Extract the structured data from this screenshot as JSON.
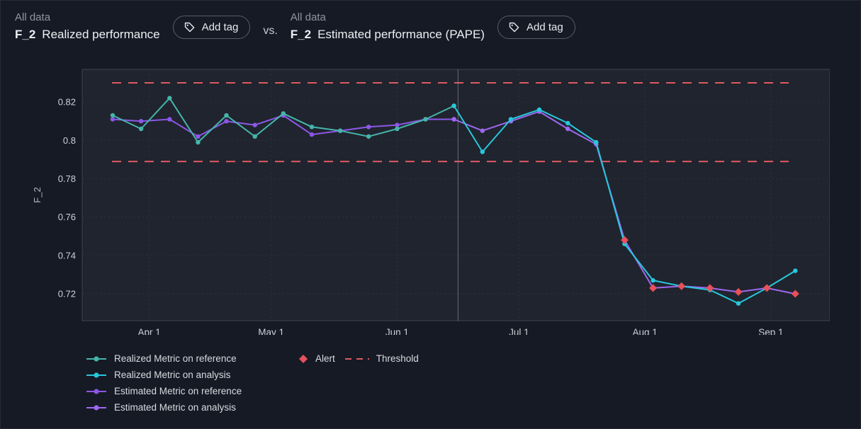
{
  "header": {
    "left": {
      "scope": "All data",
      "metric": "F_2",
      "title": "Realized performance",
      "add_tag": "Add tag"
    },
    "vs": "vs.",
    "right": {
      "scope": "All data",
      "metric": "F_2",
      "title": "Estimated performance (PAPE)",
      "add_tag": "Add tag"
    }
  },
  "chart_data": {
    "type": "line",
    "title": "",
    "xlabel": "",
    "ylabel": "F_2",
    "x_unit": "days since Mar 1",
    "x_domain": [
      14.5,
      198.5
    ],
    "y_domain": [
      0.706,
      0.837
    ],
    "x_ticks": [
      {
        "day": 31,
        "label": "Apr 1"
      },
      {
        "day": 61,
        "label": "May 1"
      },
      {
        "day": 92,
        "label": "Jun 1"
      },
      {
        "day": 122,
        "label": "Jul 1"
      },
      {
        "day": 153,
        "label": "Aug 1"
      },
      {
        "day": 184,
        "label": "Sep 1"
      }
    ],
    "y_ticks": [
      {
        "value": 0.72,
        "label": "0.72"
      },
      {
        "value": 0.74,
        "label": "0.74"
      },
      {
        "value": 0.76,
        "label": "0.76"
      },
      {
        "value": 0.78,
        "label": "0.78"
      },
      {
        "value": 0.8,
        "label": "0.8"
      },
      {
        "value": 0.82,
        "label": "0.82"
      }
    ],
    "thresholds": [
      0.83,
      0.789
    ],
    "threshold_label": "Threshold",
    "threshold_color": "#dd5a60",
    "divider_day": 107,
    "series": [
      {
        "name": "Realized Metric on reference",
        "color": "#45b5aa",
        "x": [
          22,
          29,
          36,
          43,
          50,
          57,
          64,
          71,
          78,
          85,
          92,
          99,
          106
        ],
        "values": [
          0.813,
          0.806,
          0.822,
          0.799,
          0.813,
          0.802,
          0.814,
          0.807,
          0.805,
          0.802,
          0.806,
          0.811,
          0.818
        ]
      },
      {
        "name": "Realized Metric on analysis",
        "color": "#27c8dc",
        "x": [
          106,
          113,
          120,
          127,
          134,
          141,
          148,
          155,
          162,
          169,
          176,
          183,
          190
        ],
        "values": [
          0.818,
          0.794,
          0.811,
          0.816,
          0.809,
          0.799,
          0.746,
          0.727,
          0.724,
          0.722,
          0.715,
          0.723,
          0.732
        ]
      },
      {
        "name": "Estimated Metric on reference",
        "color": "#8c57e6",
        "x": [
          22,
          29,
          36,
          43,
          50,
          57,
          64,
          71,
          78,
          85,
          92,
          99,
          106
        ],
        "values": [
          0.811,
          0.81,
          0.811,
          0.802,
          0.81,
          0.808,
          0.813,
          0.803,
          0.805,
          0.807,
          0.808,
          0.811,
          0.811
        ]
      },
      {
        "name": "Estimated Metric on analysis",
        "color": "#9d68f0",
        "x": [
          106,
          113,
          120,
          127,
          134,
          141,
          148,
          155,
          162,
          169,
          176,
          183,
          190
        ],
        "values": [
          0.811,
          0.805,
          0.81,
          0.815,
          0.806,
          0.798,
          0.748,
          0.723,
          0.724,
          0.723,
          0.721,
          0.723,
          0.72
        ]
      }
    ],
    "alerts": {
      "label": "Alert",
      "color": "#e8505b",
      "points": [
        {
          "x": 148,
          "y": 0.748
        },
        {
          "x": 155,
          "y": 0.723
        },
        {
          "x": 162,
          "y": 0.724
        },
        {
          "x": 169,
          "y": 0.723
        },
        {
          "x": 176,
          "y": 0.721
        },
        {
          "x": 183,
          "y": 0.723
        },
        {
          "x": 190,
          "y": 0.72
        }
      ]
    },
    "colors": {
      "page_bg": "#161a25",
      "plot_bg": "#20242e",
      "grid": "#2d323d",
      "border": "#3f444e",
      "divider": "#9aa1aa",
      "tick_text": "#ccd0d7"
    },
    "legend_position": "bottom-left",
    "grid": true
  }
}
